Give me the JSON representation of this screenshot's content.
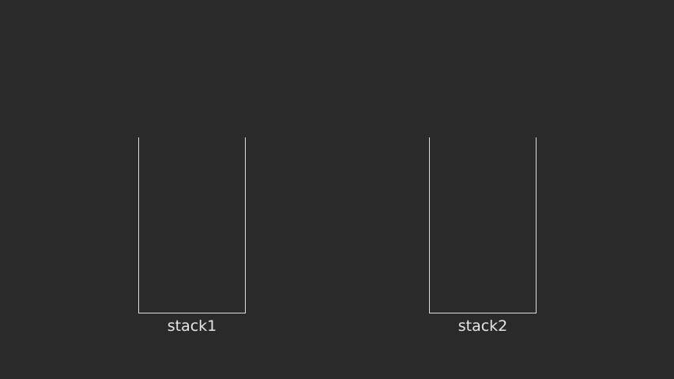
{
  "diagram": {
    "stacks": [
      {
        "label": "stack1"
      },
      {
        "label": "stack2"
      }
    ],
    "colors": {
      "background": "#2a2a2a",
      "outline": "#dcdcdc",
      "text": "#e6e6e6"
    }
  }
}
